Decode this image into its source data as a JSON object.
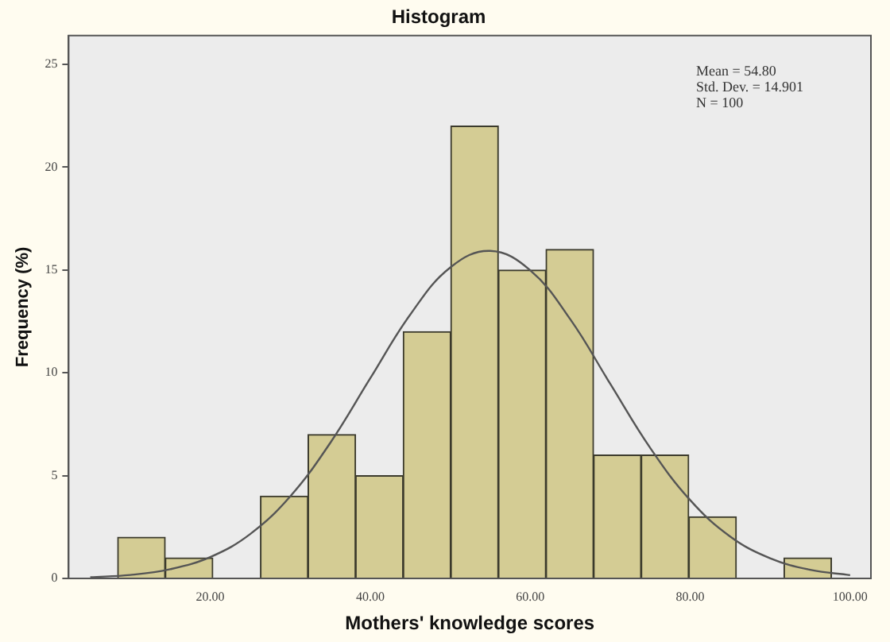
{
  "chart_data": {
    "type": "histogram",
    "title": "Histogram",
    "xlabel": "Mothers' knowledge scores",
    "ylabel": "Frequency (%)",
    "bins": [
      8.4,
      14.4,
      20.3,
      26.3,
      32.2,
      38.2,
      44.1,
      50.1,
      56.0,
      62.0,
      67.9,
      73.9,
      79.8,
      85.8,
      91.7,
      97.7
    ],
    "values": [
      2,
      1,
      0,
      4,
      7,
      5,
      12,
      22,
      15,
      16,
      6,
      6,
      3,
      0,
      1
    ],
    "color": "#d4cc94",
    "series": [
      {
        "type": "line",
        "color": "#555555",
        "x": [
          5,
          10,
          15,
          20,
          25,
          30,
          35,
          40,
          45,
          50,
          55,
          60,
          65,
          70,
          75,
          80,
          85,
          90,
          95,
          100
        ],
        "values": [
          0.06,
          0.17,
          0.45,
          1.04,
          2.16,
          3.99,
          6.59,
          9.73,
          12.83,
          15.12,
          15.93,
          14.99,
          12.61,
          9.47,
          6.35,
          3.81,
          2.04,
          0.98,
          0.42,
          0.16
        ]
      }
    ],
    "xlim": [
      2.3,
      102.6
    ],
    "xticks": [
      {
        "value": 20,
        "label": "20.00"
      },
      {
        "value": 40,
        "label": "40.00"
      },
      {
        "value": 60,
        "label": "60.00"
      },
      {
        "value": 80,
        "label": "80.00"
      },
      {
        "value": 100,
        "label": "100.00"
      }
    ],
    "ylim": [
      0,
      26.4
    ],
    "yticks": [
      0,
      5,
      10,
      15,
      20,
      25
    ],
    "annotations": [
      "Mean = 54.80",
      "Std. Dev. = 14.901",
      "N = 100"
    ],
    "grid": false,
    "legend": false
  }
}
